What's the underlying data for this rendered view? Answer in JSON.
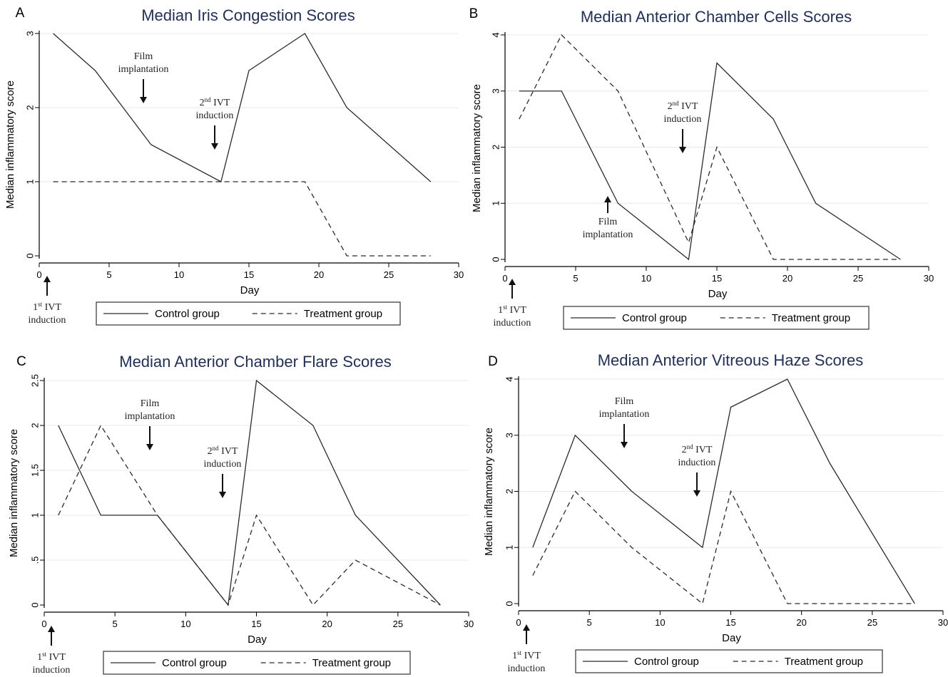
{
  "figure": {
    "panels": [
      {
        "letter": "A",
        "chart_data": {
          "type": "line",
          "title": "Median Iris Congestion Scores",
          "xlabel": "Day",
          "ylabel": "Median inflammatory score",
          "xlim": [
            0,
            30
          ],
          "ylim": [
            0,
            3
          ],
          "xticks": [
            0,
            5,
            10,
            15,
            20,
            25,
            30
          ],
          "xtick_labels": [
            "0",
            "5",
            "10",
            "15",
            "20",
            "25",
            "30"
          ],
          "yticks": [
            0,
            1,
            2,
            3
          ],
          "ytick_labels": [
            "0",
            "1",
            "2",
            "3"
          ],
          "grid": true,
          "legend_position": "bottom",
          "series": [
            {
              "name": "Control group",
              "style": "solid",
              "x": [
                1,
                4,
                8,
                13,
                15,
                19,
                22,
                28
              ],
              "y": [
                3,
                2.5,
                1.5,
                1,
                2.5,
                3,
                2,
                1
              ]
            },
            {
              "name": "Treatment group",
              "style": "dashed",
              "x": [
                1,
                4,
                8,
                13,
                15,
                19,
                22,
                28
              ],
              "y": [
                1,
                1,
                1,
                1,
                1,
                1,
                0,
                0
              ]
            }
          ],
          "annotations": [
            {
              "lines": [
                "Film",
                "implantation"
              ],
              "day": 7,
              "arrow": "down"
            },
            {
              "lines": [
                "2nd IVT",
                "induction"
              ],
              "day": 12.5,
              "arrow": "down"
            },
            {
              "lines": [
                "1st IVT",
                "induction"
              ],
              "day": 0,
              "arrow": "up"
            }
          ]
        }
      },
      {
        "letter": "B",
        "chart_data": {
          "type": "line",
          "title": "Median Anterior Chamber Cells Scores",
          "xlabel": "Day",
          "ylabel": "Median inflammatory score",
          "xlim": [
            0,
            30
          ],
          "ylim": [
            0,
            4
          ],
          "xticks": [
            0,
            5,
            10,
            15,
            20,
            25,
            30
          ],
          "xtick_labels": [
            "0",
            "5",
            "10",
            "15",
            "20",
            "25",
            "30"
          ],
          "yticks": [
            0,
            1,
            2,
            3,
            4
          ],
          "ytick_labels": [
            "0",
            "1",
            "2",
            "3",
            "4"
          ],
          "grid": true,
          "legend_position": "bottom",
          "series": [
            {
              "name": "Control group",
              "style": "solid",
              "x": [
                1,
                4,
                8,
                13,
                15,
                19,
                22,
                28
              ],
              "y": [
                3,
                3,
                1,
                0,
                3.5,
                2.5,
                1,
                0
              ]
            },
            {
              "name": "Treatment group",
              "style": "dashed",
              "x": [
                1,
                4,
                8,
                13,
                15,
                19,
                22,
                28
              ],
              "y": [
                2.5,
                4,
                3,
                0.3,
                2,
                0,
                0,
                0
              ]
            }
          ],
          "annotations": [
            {
              "lines": [
                "2nd IVT",
                "induction"
              ],
              "day": 12.6,
              "arrow": "down"
            },
            {
              "lines": [
                "Film",
                "implantation"
              ],
              "day": 7,
              "arrow": "up"
            },
            {
              "lines": [
                "1st IVT",
                "induction"
              ],
              "day": 0,
              "arrow": "up"
            }
          ]
        }
      },
      {
        "letter": "C",
        "chart_data": {
          "type": "line",
          "title": "Median Anterior Chamber Flare Scores",
          "xlabel": "Day",
          "ylabel": "Median inflammatory score",
          "xlim": [
            0,
            30
          ],
          "ylim": [
            0,
            2.5
          ],
          "xticks": [
            0,
            5,
            10,
            15,
            20,
            25,
            30
          ],
          "xtick_labels": [
            "0",
            "5",
            "10",
            "15",
            "20",
            "25",
            "30"
          ],
          "yticks": [
            0,
            0.5,
            1,
            1.5,
            2,
            2.5
          ],
          "ytick_labels": [
            "0",
            ".5",
            "1",
            "1.5",
            "2",
            "2.5"
          ],
          "grid": true,
          "legend_position": "bottom",
          "series": [
            {
              "name": "Control group",
              "style": "solid",
              "x": [
                1,
                4,
                8,
                13,
                15,
                19,
                22,
                28
              ],
              "y": [
                2,
                1,
                1,
                0,
                2.5,
                2,
                1,
                0
              ]
            },
            {
              "name": "Treatment group",
              "style": "dashed",
              "x": [
                1,
                4,
                8,
                13,
                15,
                19,
                22,
                28
              ],
              "y": [
                1,
                2,
                1,
                0,
                1,
                0,
                0.5,
                0
              ]
            }
          ],
          "annotations": [
            {
              "lines": [
                "Film",
                "implantation"
              ],
              "day": 7,
              "arrow": "down"
            },
            {
              "lines": [
                "2nd IVT",
                "induction"
              ],
              "day": 12.5,
              "arrow": "down"
            },
            {
              "lines": [
                "1st IVT",
                "induction"
              ],
              "day": 0,
              "arrow": "up"
            }
          ]
        }
      },
      {
        "letter": "D",
        "chart_data": {
          "type": "line",
          "title": "Median Anterior Vitreous Haze Scores",
          "xlabel": "Day",
          "ylabel": "Median inflammatory score",
          "xlim": [
            0,
            30
          ],
          "ylim": [
            0,
            4
          ],
          "xticks": [
            0,
            5,
            10,
            15,
            20,
            25,
            30
          ],
          "xtick_labels": [
            "0",
            "5",
            "10",
            "15",
            "20",
            "25",
            "30"
          ],
          "yticks": [
            0,
            1,
            2,
            3,
            4
          ],
          "ytick_labels": [
            "0",
            "1",
            "2",
            "3",
            "4"
          ],
          "grid": true,
          "legend_position": "bottom",
          "series": [
            {
              "name": "Control group",
              "style": "solid",
              "x": [
                1,
                4,
                8,
                13,
                15,
                19,
                22,
                28
              ],
              "y": [
                1,
                3,
                2,
                1,
                3.5,
                4,
                2.5,
                0
              ]
            },
            {
              "name": "Treatment group",
              "style": "dashed",
              "x": [
                1,
                4,
                8,
                13,
                15,
                19,
                22,
                28
              ],
              "y": [
                0.5,
                2,
                1,
                0,
                2,
                0,
                0,
                0
              ]
            }
          ],
          "annotations": [
            {
              "lines": [
                "Film",
                "implantation"
              ],
              "day": 7,
              "arrow": "down"
            },
            {
              "lines": [
                "2nd IVT",
                "induction"
              ],
              "day": 12.6,
              "arrow": "down"
            },
            {
              "lines": [
                "1st IVT",
                "induction"
              ],
              "day": 0,
              "arrow": "up"
            }
          ]
        }
      }
    ]
  },
  "colors": {
    "title": "#1f2f5c",
    "line": "#2b2b2b",
    "grid": "#e4ebea",
    "axis": "#000000"
  }
}
